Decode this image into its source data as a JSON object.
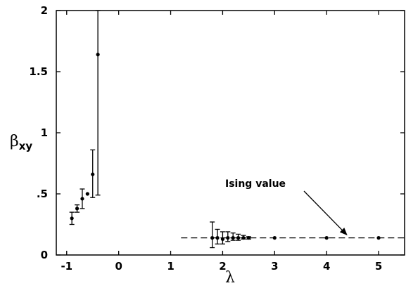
{
  "chart_data": {
    "type": "scatter",
    "xlabel": "λ",
    "ylabel": "β",
    "ylabel_sub": "xy",
    "xlim": [
      -1.2,
      5.5
    ],
    "ylim": [
      0,
      2
    ],
    "x_ticks": [
      -1,
      0,
      1,
      2,
      3,
      4,
      5
    ],
    "x_tick_labels": [
      "-1",
      "0",
      "1",
      "2",
      "3",
      "4",
      "5"
    ],
    "y_ticks": [
      0,
      0.5,
      1,
      1.5,
      2
    ],
    "y_tick_labels": [
      "0",
      ".5",
      "1",
      "1.5",
      "2"
    ],
    "grid": false,
    "points": [
      {
        "x": -0.9,
        "y": 0.3,
        "err_low": 0.05,
        "err_high": 0.05
      },
      {
        "x": -0.8,
        "y": 0.38,
        "err_low": 0.03,
        "err_high": 0.03
      },
      {
        "x": -0.7,
        "y": 0.46,
        "err_low": 0.08,
        "err_high": 0.08
      },
      {
        "x": -0.6,
        "y": 0.5,
        "err_low": 0.0,
        "err_high": 0.0
      },
      {
        "x": -0.5,
        "y": 0.66,
        "err_low": 0.19,
        "err_high": 0.2
      },
      {
        "x": -0.4,
        "y": 1.64,
        "err_low": 1.15,
        "err_high": 0.5
      },
      {
        "x": 1.8,
        "y": 0.14,
        "err_low": 0.08,
        "err_high": 0.13
      },
      {
        "x": 1.9,
        "y": 0.14,
        "err_low": 0.05,
        "err_high": 0.07
      },
      {
        "x": 2.0,
        "y": 0.13,
        "err_low": 0.04,
        "err_high": 0.06
      },
      {
        "x": 2.1,
        "y": 0.14,
        "err_low": 0.03,
        "err_high": 0.05
      },
      {
        "x": 2.2,
        "y": 0.14,
        "err_low": 0.02,
        "err_high": 0.04
      },
      {
        "x": 2.3,
        "y": 0.14,
        "err_low": 0.02,
        "err_high": 0.03
      },
      {
        "x": 2.4,
        "y": 0.14,
        "err_low": 0.01,
        "err_high": 0.02
      },
      {
        "x": 2.5,
        "y": 0.14,
        "err_low": 0.01,
        "err_high": 0.01
      },
      {
        "x": 3.0,
        "y": 0.14,
        "err_low": 0.0,
        "err_high": 0.0
      },
      {
        "x": 4.0,
        "y": 0.14,
        "err_low": 0.0,
        "err_high": 0.0
      },
      {
        "x": 5.0,
        "y": 0.14,
        "err_low": 0.0,
        "err_high": 0.0
      }
    ],
    "reference_line": {
      "y": 0.14,
      "x_start": 1.2,
      "x_end": 5.5,
      "style": "dashed"
    },
    "annotation": {
      "text": "Ising value",
      "arrow_to_x": 4.4,
      "arrow_to_y": 0.16
    }
  }
}
